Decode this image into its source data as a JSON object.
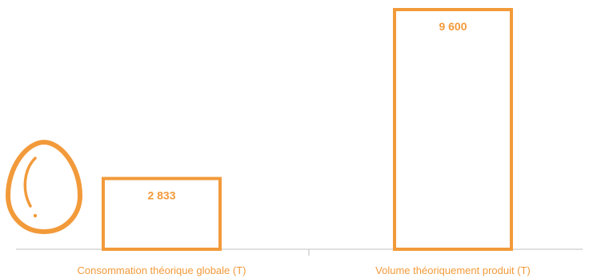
{
  "colors": {
    "accent": "#F29A3A",
    "axis": "#BFBFBF",
    "background": "#FFFFFF"
  },
  "icon": {
    "name": "egg-icon"
  },
  "chart_data": {
    "type": "bar",
    "categories": [
      "Consommation théorique  globale (T)",
      "Volume théoriquement produit (T)"
    ],
    "values": [
      2833,
      9600
    ],
    "value_labels": [
      "2 833",
      "9 600"
    ],
    "bar_style": "outlined",
    "grid": false,
    "legend": "none",
    "ylim": [
      0,
      9600
    ]
  }
}
